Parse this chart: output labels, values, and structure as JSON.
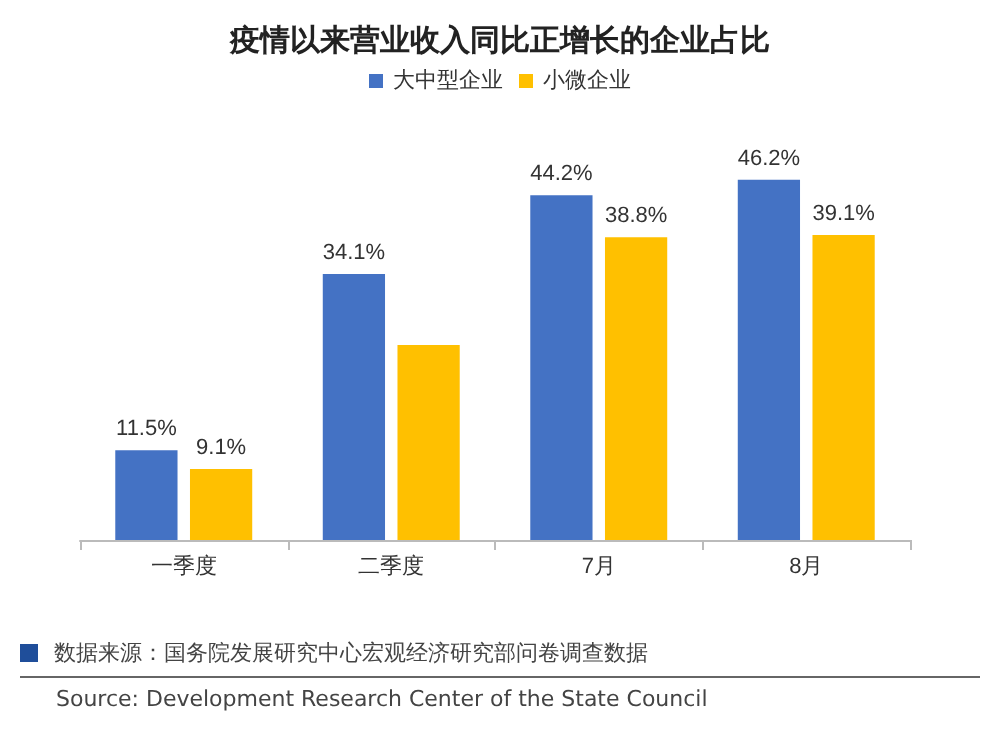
{
  "chart_data": {
    "type": "bar",
    "title": "疫情以来营业收入同比正增长的企业占比",
    "categories": [
      "一季度",
      "二季度",
      "7月",
      "8月"
    ],
    "series": [
      {
        "name": "大中型企业",
        "color": "#4472c4",
        "values": [
          11.5,
          34.1,
          44.2,
          46.2
        ],
        "value_labels": [
          "11.5%",
          "34.1%",
          "44.2%",
          "46.2%"
        ]
      },
      {
        "name": "小微企业",
        "color": "#ffc000",
        "values": [
          9.1,
          25.0,
          38.8,
          39.1
        ],
        "value_labels": [
          "9.1%",
          null,
          "38.8%",
          "39.1%"
        ]
      }
    ],
    "legend": "top",
    "annotations": [
      "数据来源：国务院发展研究中心宏观经济研究部问卷调查数据",
      "Source: Development Research Center of the State Council"
    ]
  }
}
